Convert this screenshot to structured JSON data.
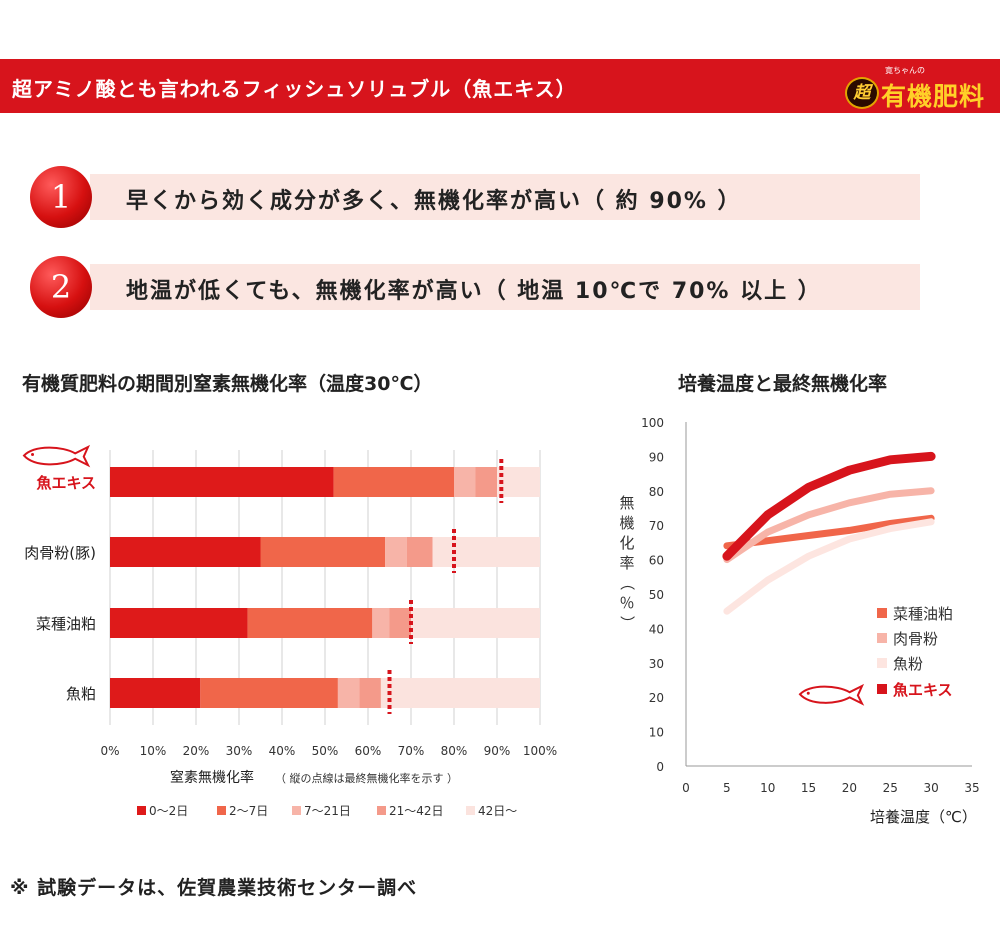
{
  "banner": {
    "title": "超アミノ酸とも言われるフィッシュソリュブル（魚エキス）",
    "logo_sub": "寛ちゃんの",
    "logo_badge": "超",
    "logo_main": "有機肥料"
  },
  "points": [
    {
      "num": "1",
      "text": "早くから効く成分が多く、無機化率が高い（ 約 90% ）"
    },
    {
      "num": "2",
      "text": "地温が低くても、無機化率が高い（ 地温 10℃で 70% 以上 ）"
    }
  ],
  "footnote": "※ 試験データは、佐賀農業技術センター調べ",
  "colors": {
    "banner": "#d7141c",
    "seg1": "#de1a1a",
    "seg2": "#f0664a",
    "seg3": "#f7b4a8",
    "seg4": "#f49a8a",
    "seg5": "#fbe3de",
    "dot": "#d7141c",
    "rapeseed": "#f0664a",
    "bonemeal": "#f7b4a8",
    "fishmeal": "#fde5e0",
    "fishextract": "#d7141c"
  },
  "chart_data": [
    {
      "type": "bar",
      "stacked": true,
      "orientation": "horizontal",
      "title": "有機質肥料の期間別窒素無機化率（温度30℃）",
      "xlabel": "窒素無機化率",
      "xlabel_note": "（ 縦の点線は最終無機化率を示す ）",
      "xlim": [
        0,
        100
      ],
      "xticks": [
        "0%",
        "10%",
        "20%",
        "30%",
        "40%",
        "50%",
        "60%",
        "70%",
        "80%",
        "90%",
        "100%"
      ],
      "categories": [
        "魚エキス",
        "肉骨粉(豚)",
        "菜種油粕",
        "魚粕"
      ],
      "series": [
        {
          "name": "0～2日",
          "values": [
            52,
            35,
            32,
            21
          ]
        },
        {
          "name": "2～7日",
          "values": [
            28,
            29,
            29,
            32
          ]
        },
        {
          "name": "7～21日",
          "values": [
            5,
            5,
            4,
            5
          ]
        },
        {
          "name": "21～42日",
          "values": [
            5,
            6,
            5,
            5
          ]
        },
        {
          "name": "42日～",
          "values": [
            10,
            25,
            30,
            37
          ]
        }
      ],
      "final_rate": [
        91,
        80,
        70,
        65
      ],
      "legend_position": "bottom",
      "highlight_category": "魚エキス"
    },
    {
      "type": "line",
      "title": "培養温度と最終無機化率",
      "xlabel": "培養温度（℃）",
      "ylabel": "無機化率（％）",
      "xlim": [
        0,
        35
      ],
      "ylim": [
        0,
        100
      ],
      "xticks": [
        0,
        5,
        10,
        15,
        20,
        25,
        30,
        35
      ],
      "yticks": [
        0,
        10,
        20,
        30,
        40,
        50,
        60,
        70,
        80,
        90,
        100
      ],
      "series": [
        {
          "name": "菜種油粕",
          "x": [
            5,
            10,
            15,
            20,
            25,
            30
          ],
          "y": [
            64,
            65.5,
            67,
            68.5,
            70.5,
            72
          ]
        },
        {
          "name": "肉骨粉",
          "x": [
            5,
            10,
            15,
            20,
            25,
            30
          ],
          "y": [
            60,
            68,
            73,
            76.5,
            79,
            80
          ]
        },
        {
          "name": "魚粉",
          "x": [
            5,
            10,
            15,
            20,
            25,
            30
          ],
          "y": [
            45,
            54,
            61,
            66,
            69,
            71
          ]
        },
        {
          "name": "魚エキス",
          "x": [
            5,
            10,
            15,
            20,
            25,
            30
          ],
          "y": [
            61,
            73,
            81,
            86,
            89,
            90
          ]
        }
      ],
      "legend_position": "right"
    }
  ]
}
